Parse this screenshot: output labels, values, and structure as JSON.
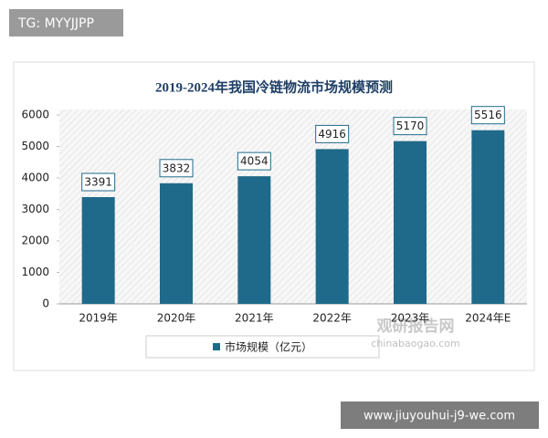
{
  "chart_data": {
    "type": "bar",
    "title": "2019-2024年我国冷链物流市场规模预测",
    "categories": [
      "2019年",
      "2020年",
      "2021年",
      "2022年",
      "2023年",
      "2024年E"
    ],
    "series": [
      {
        "name": "市场规模（亿元）",
        "color": "#1f6a8a",
        "values": [
          3391,
          3832,
          4054,
          4916,
          5170,
          5516
        ]
      }
    ],
    "ylim": [
      0,
      6000
    ],
    "yticks": [
      0,
      1000,
      2000,
      3000,
      4000,
      5000,
      6000
    ]
  },
  "watermark": {
    "name": "观研报告网",
    "site": "chinabaogao.com"
  },
  "overlay": {
    "top_left": "TG: MYYJJPP",
    "bottom_right": "www.jiuyouhui-j9-we.com"
  }
}
